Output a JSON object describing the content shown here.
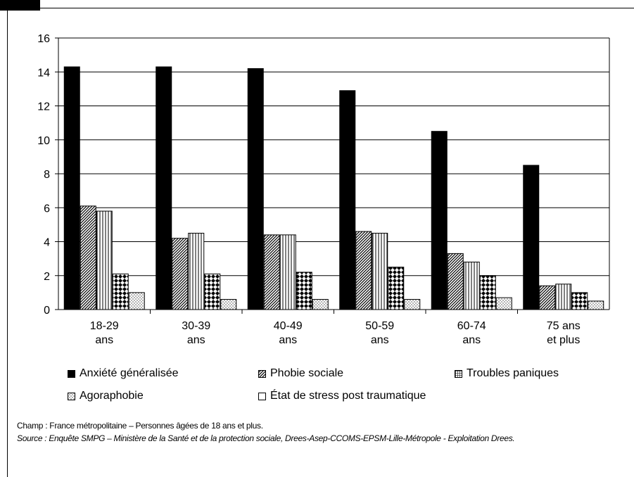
{
  "chart_data": {
    "type": "bar",
    "title": "",
    "xlabel": "",
    "ylabel": "",
    "ylim": [
      0,
      16
    ],
    "y_ticks": [
      "0",
      "2",
      "4",
      "6",
      "8",
      "10",
      "12",
      "14",
      "16"
    ],
    "grid": true,
    "categories": [
      [
        "18-29",
        "ans"
      ],
      [
        "30-39",
        "ans"
      ],
      [
        "40-49",
        "ans"
      ],
      [
        "50-59",
        "ans"
      ],
      [
        "60-74",
        "ans"
      ],
      [
        "75 ans",
        "et plus"
      ]
    ],
    "series": [
      {
        "name": "Anxiété généralisée",
        "pattern": "solid",
        "values": [
          14.3,
          14.3,
          14.2,
          12.9,
          10.5,
          8.5
        ]
      },
      {
        "name": "Phobie sociale",
        "pattern": "diagonal",
        "values": [
          6.1,
          4.2,
          4.4,
          4.6,
          3.3,
          1.4
        ]
      },
      {
        "name": "État de stress post traumatique",
        "pattern": "empty",
        "values": [
          5.8,
          4.5,
          4.4,
          4.5,
          2.8,
          1.5
        ]
      },
      {
        "name": "Troubles paniques",
        "pattern": "checker",
        "values": [
          2.1,
          2.1,
          2.2,
          2.5,
          2.0,
          1.0
        ]
      },
      {
        "name": "Agoraphobie",
        "pattern": "dots",
        "values": [
          1.0,
          0.6,
          0.6,
          0.6,
          0.7,
          0.5
        ]
      }
    ],
    "legend_placement": "bottom",
    "legend": [
      "Anxiété généralisée",
      "Phobie sociale",
      "Troubles paniques",
      "Agoraphobie",
      "État de stress post traumatique"
    ]
  },
  "notes": {
    "champ": "Champ : France métropolitaine – Personnes âgées de 18 ans et plus.",
    "source": "Source : Enquête SMPG – Ministère de la Santé et de la protection sociale, Drees-Asep-CCOMS-EPSM-Lille-Métropole - Exploitation Drees."
  }
}
